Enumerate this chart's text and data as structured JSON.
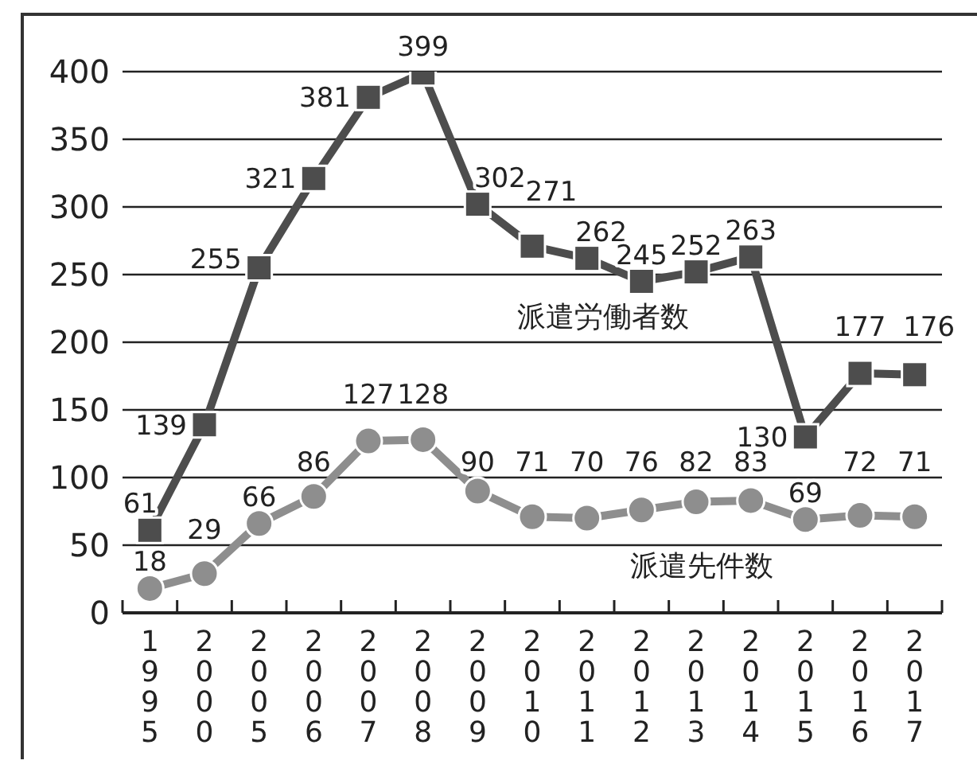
{
  "chart_data": {
    "type": "line",
    "categories": [
      "1995",
      "2000",
      "2005",
      "2006",
      "2007",
      "2008",
      "2009",
      "2010",
      "2011",
      "2012",
      "2013",
      "2014",
      "2015",
      "2016",
      "2017"
    ],
    "series": [
      {
        "name": "派遣労働者数",
        "color": "#4d4d4d",
        "marker": "square",
        "values": [
          61,
          139,
          255,
          321,
          381,
          399,
          302,
          271,
          262,
          245,
          252,
          263,
          130,
          177,
          176
        ]
      },
      {
        "name": "派遣先件数",
        "color": "#8e8e8e",
        "marker": "circle",
        "values": [
          18,
          29,
          66,
          86,
          127,
          128,
          90,
          71,
          70,
          76,
          82,
          83,
          69,
          72,
          71
        ]
      }
    ],
    "ylim": [
      0,
      400
    ],
    "yticks": [
      0,
      50,
      100,
      150,
      200,
      250,
      300,
      350,
      400
    ],
    "grid": "y",
    "data_labels": true,
    "line_style": "solid"
  }
}
